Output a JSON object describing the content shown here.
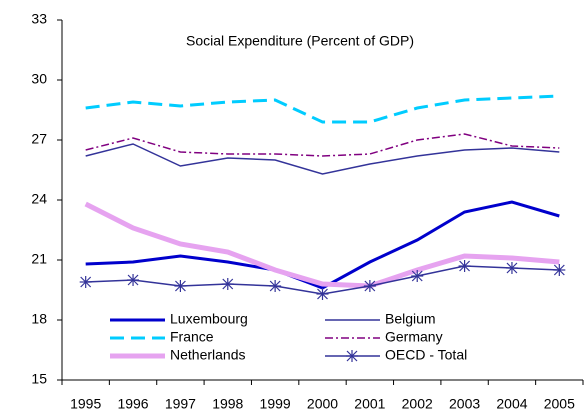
{
  "chart_data": {
    "type": "line",
    "title": "Social Expenditure (Percent of GDP)",
    "categories": [
      "1995",
      "1996",
      "1997",
      "1998",
      "1999",
      "2000",
      "2001",
      "2002",
      "2003",
      "2004",
      "2005"
    ],
    "ylim": [
      15,
      33
    ],
    "yticks": [
      15,
      18,
      21,
      24,
      27,
      30,
      33
    ],
    "grid": false,
    "legend": "lower left",
    "series": [
      {
        "name": "Luxembourg",
        "color": "#0000cc",
        "style": "solid",
        "weight": "thick",
        "values": [
          20.8,
          20.9,
          21.2,
          20.9,
          20.5,
          19.6,
          20.9,
          22.0,
          23.4,
          23.9,
          23.2
        ]
      },
      {
        "name": "Belgium",
        "color": "#333399",
        "style": "solid",
        "weight": "thin",
        "values": [
          26.2,
          26.8,
          25.7,
          26.1,
          26.0,
          25.3,
          25.8,
          26.2,
          26.5,
          26.6,
          26.4
        ]
      },
      {
        "name": "France",
        "color": "#00ccff",
        "style": "dashed",
        "weight": "thick",
        "values": [
          28.6,
          28.9,
          28.7,
          28.9,
          29.0,
          27.9,
          27.9,
          28.6,
          29.0,
          29.1,
          29.2
        ]
      },
      {
        "name": "Germany",
        "color": "#800080",
        "style": "dashdot",
        "weight": "thin",
        "values": [
          26.5,
          27.1,
          26.4,
          26.3,
          26.3,
          26.2,
          26.3,
          27.0,
          27.3,
          26.7,
          26.6
        ]
      },
      {
        "name": "Netherlands",
        "color": "#e6a3f0",
        "style": "solid",
        "weight": "heavy",
        "values": [
          23.8,
          22.6,
          21.8,
          21.4,
          20.5,
          19.8,
          19.7,
          20.5,
          21.2,
          21.1,
          20.9
        ]
      },
      {
        "name": "OECD - Total",
        "color": "#333399",
        "style": "solid",
        "weight": "thin",
        "marker": "asterisk",
        "values": [
          19.9,
          20.0,
          19.7,
          19.8,
          19.7,
          19.3,
          19.7,
          20.2,
          20.7,
          20.6,
          20.5
        ]
      }
    ]
  }
}
